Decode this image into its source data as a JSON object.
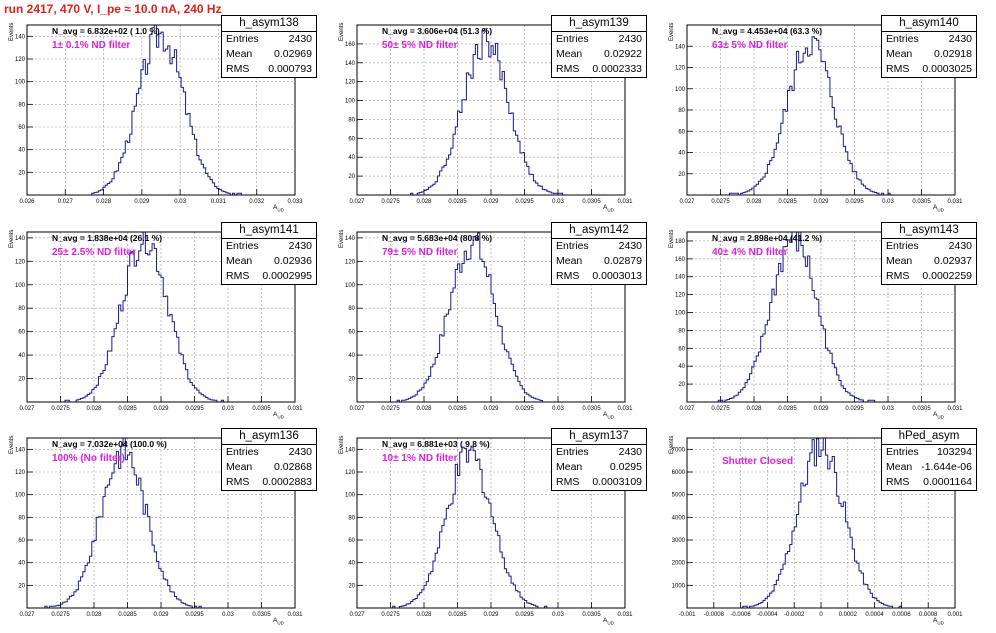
{
  "title": "run 2417,   470 V, I_pe ≈ 10.0 nA, 240 Hz",
  "chart_data": [
    {
      "type": "bar",
      "hist": "h_asym138",
      "stats": {
        "entries": "2430",
        "mean": "0.02969",
        "rms": "0.000793"
      },
      "annotation": "N_avg = 6.832e+02 ( 1.0 %)",
      "filter": "1± 0.1% ND filter",
      "xlim": [
        0.026,
        0.033
      ],
      "ylim": [
        0,
        150
      ],
      "xticks": [
        "0.026",
        "0.027",
        "0.028",
        "0.029",
        "0.03",
        "0.031",
        "0.032",
        "0.033"
      ],
      "yticks": [
        "20",
        "40",
        "60",
        "80",
        "100",
        "120",
        "140"
      ],
      "xlabel": "A_UD",
      "ylabel": "Events"
    },
    {
      "type": "bar",
      "hist": "h_asym139",
      "stats": {
        "entries": "2430",
        "mean": "0.02922",
        "rms": "0.0002333"
      },
      "annotation": "N_avg = 3.606e+04 (51.3 %)",
      "filter": "50± 5% ND filter",
      "xlim": [
        0.027,
        0.031
      ],
      "ylim": [
        0,
        180
      ],
      "xticks": [
        "0.027",
        "0.0275",
        "0.028",
        "0.0285",
        "0.029",
        "0.0295",
        "0.03",
        "0.0305",
        "0.031"
      ],
      "yticks": [
        "20",
        "40",
        "60",
        "80",
        "100",
        "120",
        "140",
        "160"
      ],
      "xlabel": "A_UD",
      "ylabel": "Events"
    },
    {
      "type": "bar",
      "hist": "h_asym140",
      "stats": {
        "entries": "2430",
        "mean": "0.02918",
        "rms": "0.0003025"
      },
      "annotation": "N_avg = 4.453e+04 (63.3 %)",
      "filter": "63± 5% ND filter",
      "xlim": [
        0.027,
        0.031
      ],
      "ylim": [
        0,
        160
      ],
      "xticks": [
        "0.027",
        "0.0275",
        "0.028",
        "0.0285",
        "0.029",
        "0.0295",
        "0.03",
        "0.0305",
        "0.031"
      ],
      "yticks": [
        "20",
        "40",
        "60",
        "80",
        "100",
        "120",
        "140"
      ],
      "xlabel": "A_UD",
      "ylabel": "Events"
    },
    {
      "type": "bar",
      "hist": "h_asym141",
      "stats": {
        "entries": "2430",
        "mean": "0.02936",
        "rms": "0.0002995"
      },
      "annotation": "N_avg = 1.838e+04 (26.1 %)",
      "filter": "25± 2.5% ND filter",
      "xlim": [
        0.027,
        0.031
      ],
      "ylim": [
        0,
        145
      ],
      "xticks": [
        "0.027",
        "0.0275",
        "0.028",
        "0.0285",
        "0.029",
        "0.0295",
        "0.03",
        "0.0305",
        "0.031"
      ],
      "yticks": [
        "20",
        "40",
        "60",
        "80",
        "100",
        "120",
        "140"
      ],
      "xlabel": "A_UD",
      "ylabel": "Events"
    },
    {
      "type": "bar",
      "hist": "h_asym142",
      "stats": {
        "entries": "2430",
        "mean": "0.02879",
        "rms": "0.0003013"
      },
      "annotation": "N_avg = 5.683e+04 (80.8 %)",
      "filter": "79± 5% ND filter",
      "xlim": [
        0.027,
        0.031
      ],
      "ylim": [
        0,
        145
      ],
      "xticks": [
        "0.027",
        "0.0275",
        "0.028",
        "0.0285",
        "0.029",
        "0.0295",
        "0.03",
        "0.0305",
        "0.031"
      ],
      "yticks": [
        "20",
        "40",
        "60",
        "80",
        "100",
        "120",
        "140"
      ],
      "xlabel": "A_UD",
      "ylabel": "Events"
    },
    {
      "type": "bar",
      "hist": "h_asym143",
      "stats": {
        "entries": "2430",
        "mean": "0.02937",
        "rms": "0.0002259"
      },
      "annotation": "N_avg = 2.898e+04 (41.2 %)",
      "filter": "40± 4% ND filter",
      "xlim": [
        0.027,
        0.031
      ],
      "ylim": [
        0,
        190
      ],
      "xticks": [
        "0.027",
        "0.0275",
        "0.028",
        "0.0285",
        "0.029",
        "0.0295",
        "0.03",
        "0.0305",
        "0.031"
      ],
      "yticks": [
        "20",
        "40",
        "60",
        "80",
        "100",
        "120",
        "140",
        "160",
        "180"
      ],
      "xlabel": "A_UD",
      "ylabel": "Events"
    },
    {
      "type": "bar",
      "hist": "h_asym136",
      "stats": {
        "entries": "2430",
        "mean": "0.02868",
        "rms": "0.0002883"
      },
      "annotation": "N_avg = 7.032e+04 (100.0 %)",
      "filter": "100% (No filter)",
      "xlim": [
        0.027,
        0.031
      ],
      "ylim": [
        0,
        150
      ],
      "xticks": [
        "0.027",
        "0.0275",
        "0.028",
        "0.0285",
        "0.029",
        "0.0295",
        "0.03",
        "0.0305",
        "0.031"
      ],
      "yticks": [
        "20",
        "40",
        "60",
        "80",
        "100",
        "120",
        "140"
      ],
      "xlabel": "A_UD",
      "ylabel": "Events"
    },
    {
      "type": "bar",
      "hist": "h_asym137",
      "stats": {
        "entries": "2430",
        "mean": "0.0295",
        "rms": "0.0003109"
      },
      "annotation": "N_avg = 6.881e+03 ( 9.8 %)",
      "filter": "10± 1% ND filter",
      "xlim": [
        0.027,
        0.031
      ],
      "ylim": [
        0,
        150
      ],
      "xticks": [
        "0.027",
        "0.0275",
        "0.028",
        "0.0285",
        "0.029",
        "0.0295",
        "0.03",
        "0.0305",
        "0.031"
      ],
      "yticks": [
        "20",
        "40",
        "60",
        "80",
        "100",
        "120",
        "140"
      ],
      "xlabel": "A_UD",
      "ylabel": "Events"
    },
    {
      "type": "bar",
      "hist": "hPed_asym",
      "stats": {
        "entries": "103294",
        "mean": "-1.644e-06",
        "rms": "0.0001164"
      },
      "annotation": "",
      "filter": "Shutter Closed",
      "xlim": [
        -0.001,
        0.001
      ],
      "ylim": [
        0,
        7500
      ],
      "xticks": [
        "-0.001",
        "-0.0008",
        "-0.0006",
        "-0.0004",
        "-0.0002",
        "0",
        "0.0002",
        "0.0004",
        "0.0006",
        "0.0008",
        "0.001"
      ],
      "yticks": [
        "1000",
        "2000",
        "3000",
        "4000",
        "5000",
        "6000",
        "7000"
      ],
      "xlabel": "A_UD",
      "ylabel": "Events"
    }
  ]
}
